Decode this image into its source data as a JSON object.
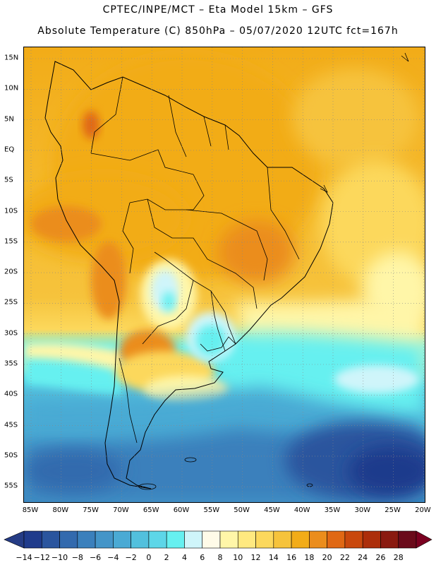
{
  "header": {
    "line1": "CPTEC/INPE/MCT –  Eta Model 15km – GFS",
    "line2": "Absolute Temperature (C) 850hPa – 05/07/2020 12UTC fct=167h"
  },
  "map": {
    "region": "South America",
    "variable": "Absolute Temperature (C) 850hPa",
    "lat_ticks": [
      "15N",
      "10N",
      "5N",
      "EQ",
      "5S",
      "10S",
      "15S",
      "20S",
      "25S",
      "30S",
      "35S",
      "40S",
      "45S",
      "50S",
      "55S"
    ],
    "lon_ticks": [
      "85W",
      "80W",
      "75W",
      "70W",
      "65W",
      "60W",
      "55W",
      "50W",
      "45W",
      "40W",
      "35W",
      "30W",
      "25W",
      "20W"
    ]
  },
  "colorbar": {
    "labels": [
      "-14",
      "-12",
      "-10",
      "-8",
      "-6",
      "-4",
      "-2",
      "0",
      "2",
      "4",
      "6",
      "8",
      "10",
      "12",
      "14",
      "16",
      "18",
      "20",
      "22",
      "24",
      "26",
      "28"
    ],
    "colors": [
      "#1f3b8c",
      "#2a559e",
      "#336aae",
      "#3b80bc",
      "#4495c8",
      "#4aaad4",
      "#52c0dd",
      "#5dd6e8",
      "#66f0f0",
      "#cff5fa",
      "#fffbe8",
      "#fff6a8",
      "#ffe980",
      "#fcd85c",
      "#f6c33c",
      "#f2ac18",
      "#eb8d1c",
      "#e06814",
      "#c9480d",
      "#ac2e0a",
      "#8a1a10",
      "#6a0a1a"
    ],
    "under_color": "#253c85",
    "over_color": "#7a0020"
  }
}
